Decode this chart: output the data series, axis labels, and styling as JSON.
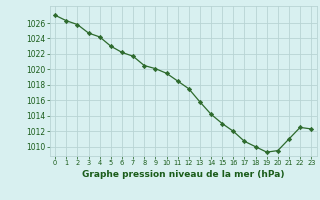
{
  "x": [
    0,
    1,
    2,
    3,
    4,
    5,
    6,
    7,
    8,
    9,
    10,
    11,
    12,
    13,
    14,
    15,
    16,
    17,
    18,
    19,
    20,
    21,
    22,
    23
  ],
  "y": [
    1027.0,
    1026.3,
    1025.8,
    1024.7,
    1024.2,
    1023.0,
    1022.2,
    1021.7,
    1020.5,
    1020.1,
    1019.5,
    1018.5,
    1017.5,
    1015.8,
    1014.2,
    1013.0,
    1012.0,
    1010.7,
    1010.0,
    1009.3,
    1009.5,
    1011.0,
    1012.5,
    1012.3
  ],
  "line_color": "#2d6a2d",
  "marker": "D",
  "marker_size": 2.2,
  "marker_lw": 0.5,
  "bg_color": "#d8f0f0",
  "grid_color": "#b8d4d4",
  "xlabel": "Graphe pression niveau de la mer (hPa)",
  "xlabel_color": "#1a5c1a",
  "tick_color": "#1a5c1a",
  "ylabel_ticks": [
    1010,
    1012,
    1014,
    1016,
    1018,
    1020,
    1022,
    1024,
    1026
  ],
  "ylim": [
    1008.8,
    1028.2
  ],
  "xlim": [
    -0.5,
    23.5
  ],
  "xtick_labels": [
    "0",
    "1",
    "2",
    "3",
    "4",
    "5",
    "6",
    "7",
    "8",
    "9",
    "10",
    "11",
    "12",
    "13",
    "14",
    "15",
    "16",
    "17",
    "18",
    "19",
    "20",
    "21",
    "22",
    "23"
  ],
  "line_width": 0.9,
  "xlabel_fontsize": 6.5,
  "ytick_fontsize": 5.5,
  "xtick_fontsize": 4.8
}
